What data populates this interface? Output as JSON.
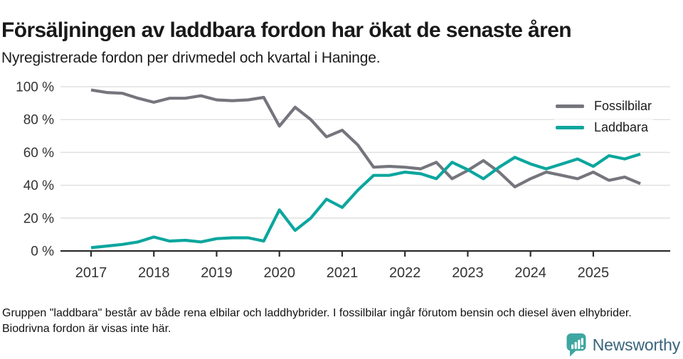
{
  "header": {
    "title": "Försäljningen av laddbara fordon har ökat de senaste åren",
    "subtitle": "Nyregistrerade fordon per drivmedel och kvartal i Haninge."
  },
  "chart_data": {
    "type": "line",
    "x_interval": "quarter",
    "x_quarters": [
      "2017 Q1",
      "2017 Q2",
      "2017 Q3",
      "2017 Q4",
      "2018 Q1",
      "2018 Q2",
      "2018 Q3",
      "2018 Q4",
      "2019 Q1",
      "2019 Q2",
      "2019 Q3",
      "2019 Q4",
      "2020 Q1",
      "2020 Q2",
      "2020 Q3",
      "2020 Q4",
      "2021 Q1",
      "2021 Q2",
      "2021 Q3",
      "2021 Q4",
      "2022 Q1",
      "2022 Q2",
      "2022 Q3",
      "2022 Q4",
      "2023 Q1",
      "2023 Q2",
      "2023 Q3",
      "2023 Q4",
      "2024 Q1",
      "2024 Q2",
      "2024 Q3",
      "2024 Q4",
      "2025 Q1",
      "2025 Q2",
      "2025 Q3",
      "2025 Q4"
    ],
    "x_tick_labels": [
      "2017",
      "2018",
      "2019",
      "2020",
      "2021",
      "2022",
      "2023",
      "2024",
      "2025"
    ],
    "y_ticks": [
      {
        "value": 0,
        "label": "0 %"
      },
      {
        "value": 20,
        "label": "20 %"
      },
      {
        "value": 40,
        "label": "40 %"
      },
      {
        "value": 60,
        "label": "60 %"
      },
      {
        "value": 80,
        "label": "80 %"
      },
      {
        "value": 100,
        "label": "100 %"
      }
    ],
    "ylim": [
      0,
      100
    ],
    "grid": true,
    "legend_position": "top-right",
    "series": [
      {
        "name": "Fossilbilar",
        "color": "#75757d",
        "values": [
          98,
          96.5,
          96,
          93,
          90.5,
          93,
          93,
          94.5,
          92,
          91.5,
          92,
          93.5,
          76,
          87.5,
          80,
          69.5,
          73.5,
          64.5,
          51,
          51.5,
          51,
          50,
          54,
          44,
          49,
          55,
          48,
          39,
          44,
          48,
          46,
          44,
          48,
          43,
          45,
          41
        ]
      },
      {
        "name": "Laddbara",
        "color": "#0ba69e",
        "values": [
          2,
          3,
          4,
          5.5,
          8.5,
          6,
          6.5,
          5.5,
          7.5,
          8,
          8,
          6,
          25,
          12.5,
          20,
          31.5,
          26.5,
          37,
          46,
          46,
          48,
          47,
          44,
          54,
          49.5,
          44,
          51,
          57,
          53,
          50,
          53,
          56,
          51.5,
          58,
          56,
          59
        ]
      }
    ]
  },
  "footer": {
    "note": "Gruppen \"laddbara\" består av både rena elbilar och laddhybrider. I fossilbilar ingår förutom bensin och diesel även elhybrider. Biodrivna fordon är visas inte här.",
    "logo_text": "Newsworthy"
  },
  "colors": {
    "grid": "#e0e0e0",
    "axis": "#2d2d2d",
    "tick_label": "#333333",
    "logo_icon": "#3ea6a1",
    "logo_text": "#38647c"
  }
}
